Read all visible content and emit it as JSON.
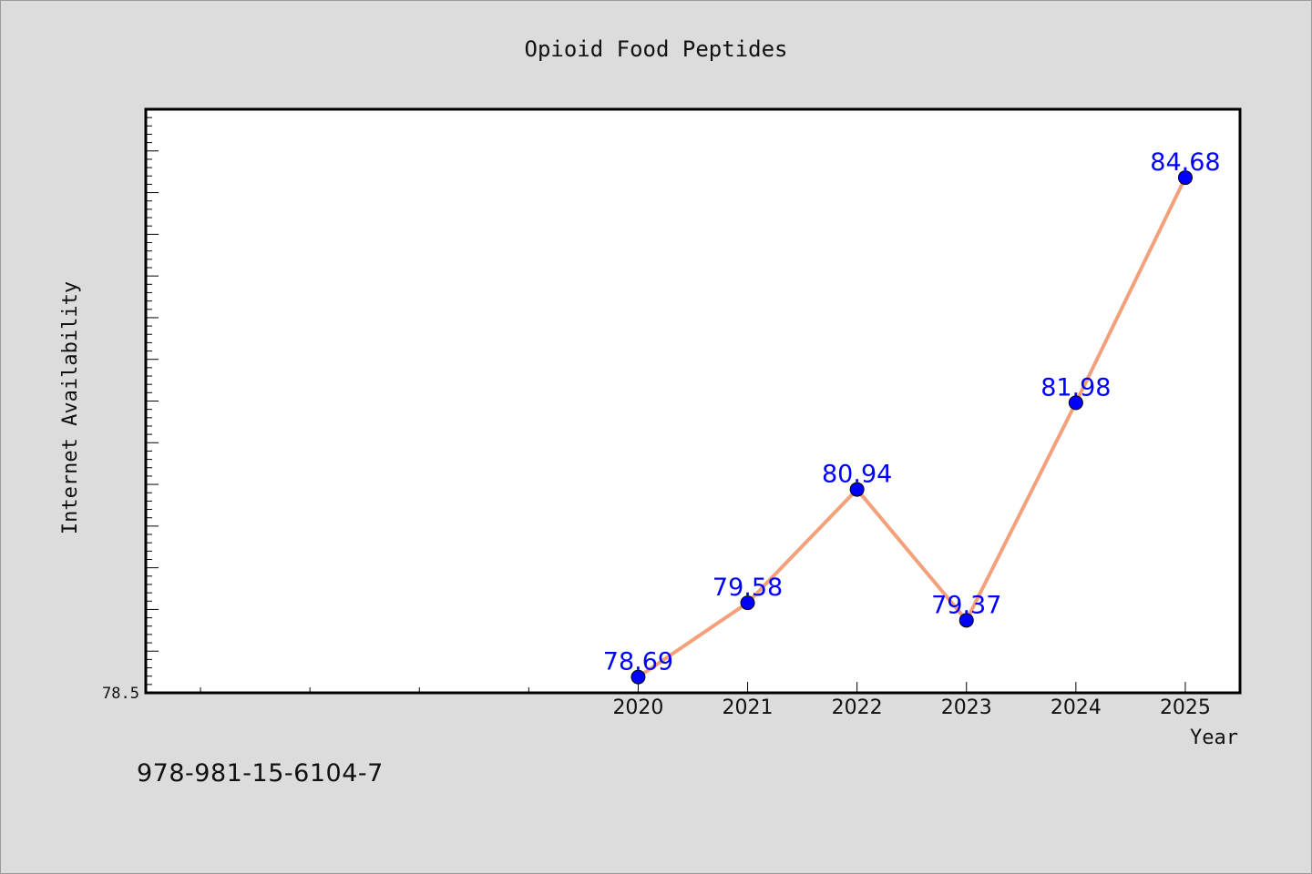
{
  "chart_data": {
    "type": "line",
    "title": "Opioid Food Peptides",
    "xlabel": "Year",
    "ylabel": "Internet Availability",
    "x": [
      2020,
      2021,
      2022,
      2023,
      2024,
      2025
    ],
    "x_ticks": [
      "2020",
      "2021",
      "2022",
      "2023",
      "2024",
      "2025"
    ],
    "values": [
      78.69,
      79.58,
      80.94,
      79.37,
      81.98,
      84.68
    ],
    "data_labels": [
      "78.69",
      "79.58",
      "80.94",
      "79.37",
      "81.98",
      "84.68"
    ],
    "y_ticks": [
      "78.5"
    ],
    "ylim": [
      78.5,
      85.5
    ],
    "xlim": [
      2015.5,
      2025.5
    ],
    "grid": false,
    "colors": {
      "line": "#f4a07a",
      "marker": "#0000ff",
      "label": "#0000ff",
      "plot_bg": "#ffffff",
      "figure_bg": "#dcdcdc"
    }
  },
  "footer": {
    "isbn": "978-981-15-6104-7"
  }
}
